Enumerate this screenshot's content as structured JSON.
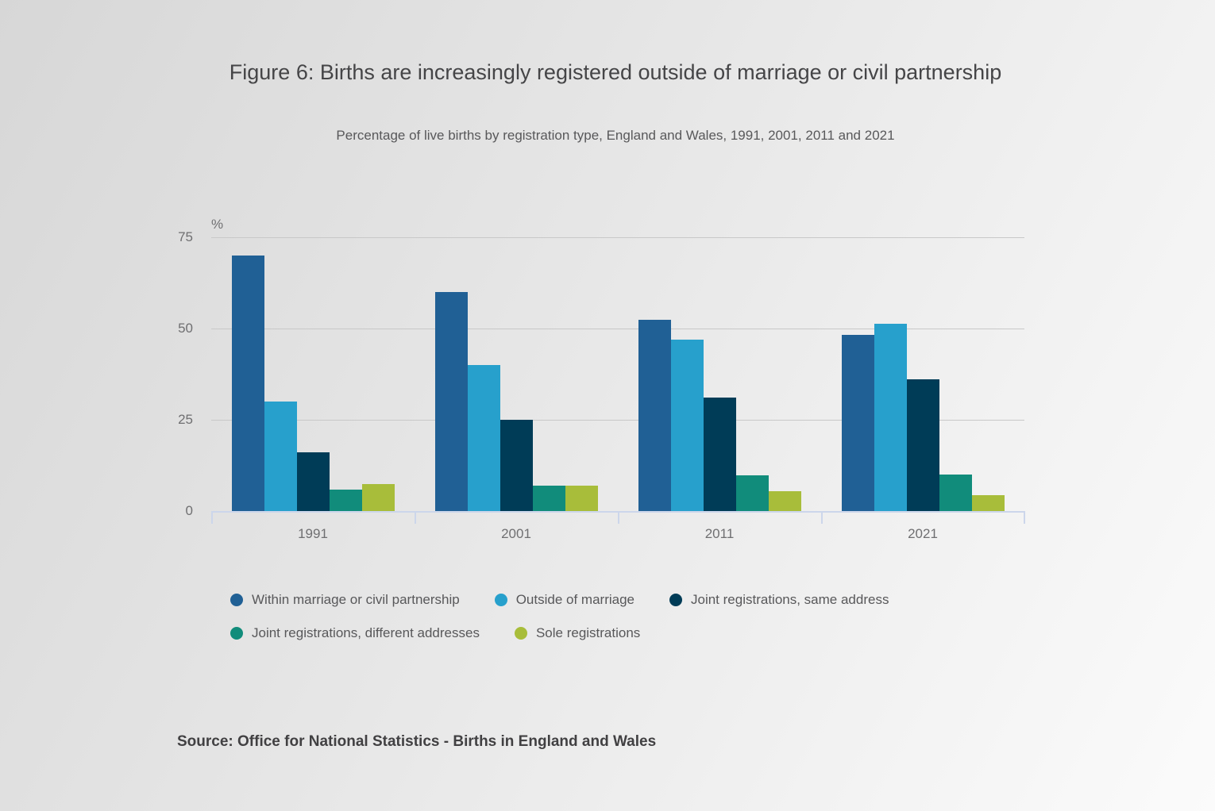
{
  "page": {
    "source": "Source: Office for National Statistics - Births in England and Wales"
  },
  "chart_data": {
    "type": "bar",
    "title": "Figure 6: Births are increasingly registered outside of marriage or civil partnership",
    "subtitle": "Percentage of live births by registration type, England and Wales, 1991, 2001, 2011 and 2021",
    "categories": [
      "1991",
      "2001",
      "2011",
      "2021"
    ],
    "series": [
      {
        "name": "Within marriage or civil partnership",
        "color": "#206095",
        "values": [
          70,
          60,
          52.5,
          48.3
        ]
      },
      {
        "name": "Outside of marriage",
        "color": "#27a0cc",
        "values": [
          30,
          40,
          47,
          51.2
        ]
      },
      {
        "name": "Joint registrations, same address",
        "color": "#003c57",
        "values": [
          16,
          25,
          31,
          36
        ]
      },
      {
        "name": "Joint registrations, different addresses",
        "color": "#118c7b",
        "values": [
          5.8,
          7,
          9.7,
          9.9
        ]
      },
      {
        "name": "Sole registrations",
        "color": "#a8bd3a",
        "values": [
          7.5,
          7,
          5.5,
          4.3
        ]
      }
    ],
    "ylabel": "%",
    "yticks": [
      0,
      25,
      50,
      75
    ],
    "ylim": [
      0,
      75
    ],
    "grid": true,
    "legend_position": "bottom",
    "colors": {
      "grid_line": "#c8c8c8",
      "axis_line": "#ccd6eb",
      "tick_label": "#6f6f71",
      "title_text": "#454547",
      "subtitle_text": "#58585a",
      "legend_text": "#58585a",
      "source_text": "#414042"
    }
  }
}
